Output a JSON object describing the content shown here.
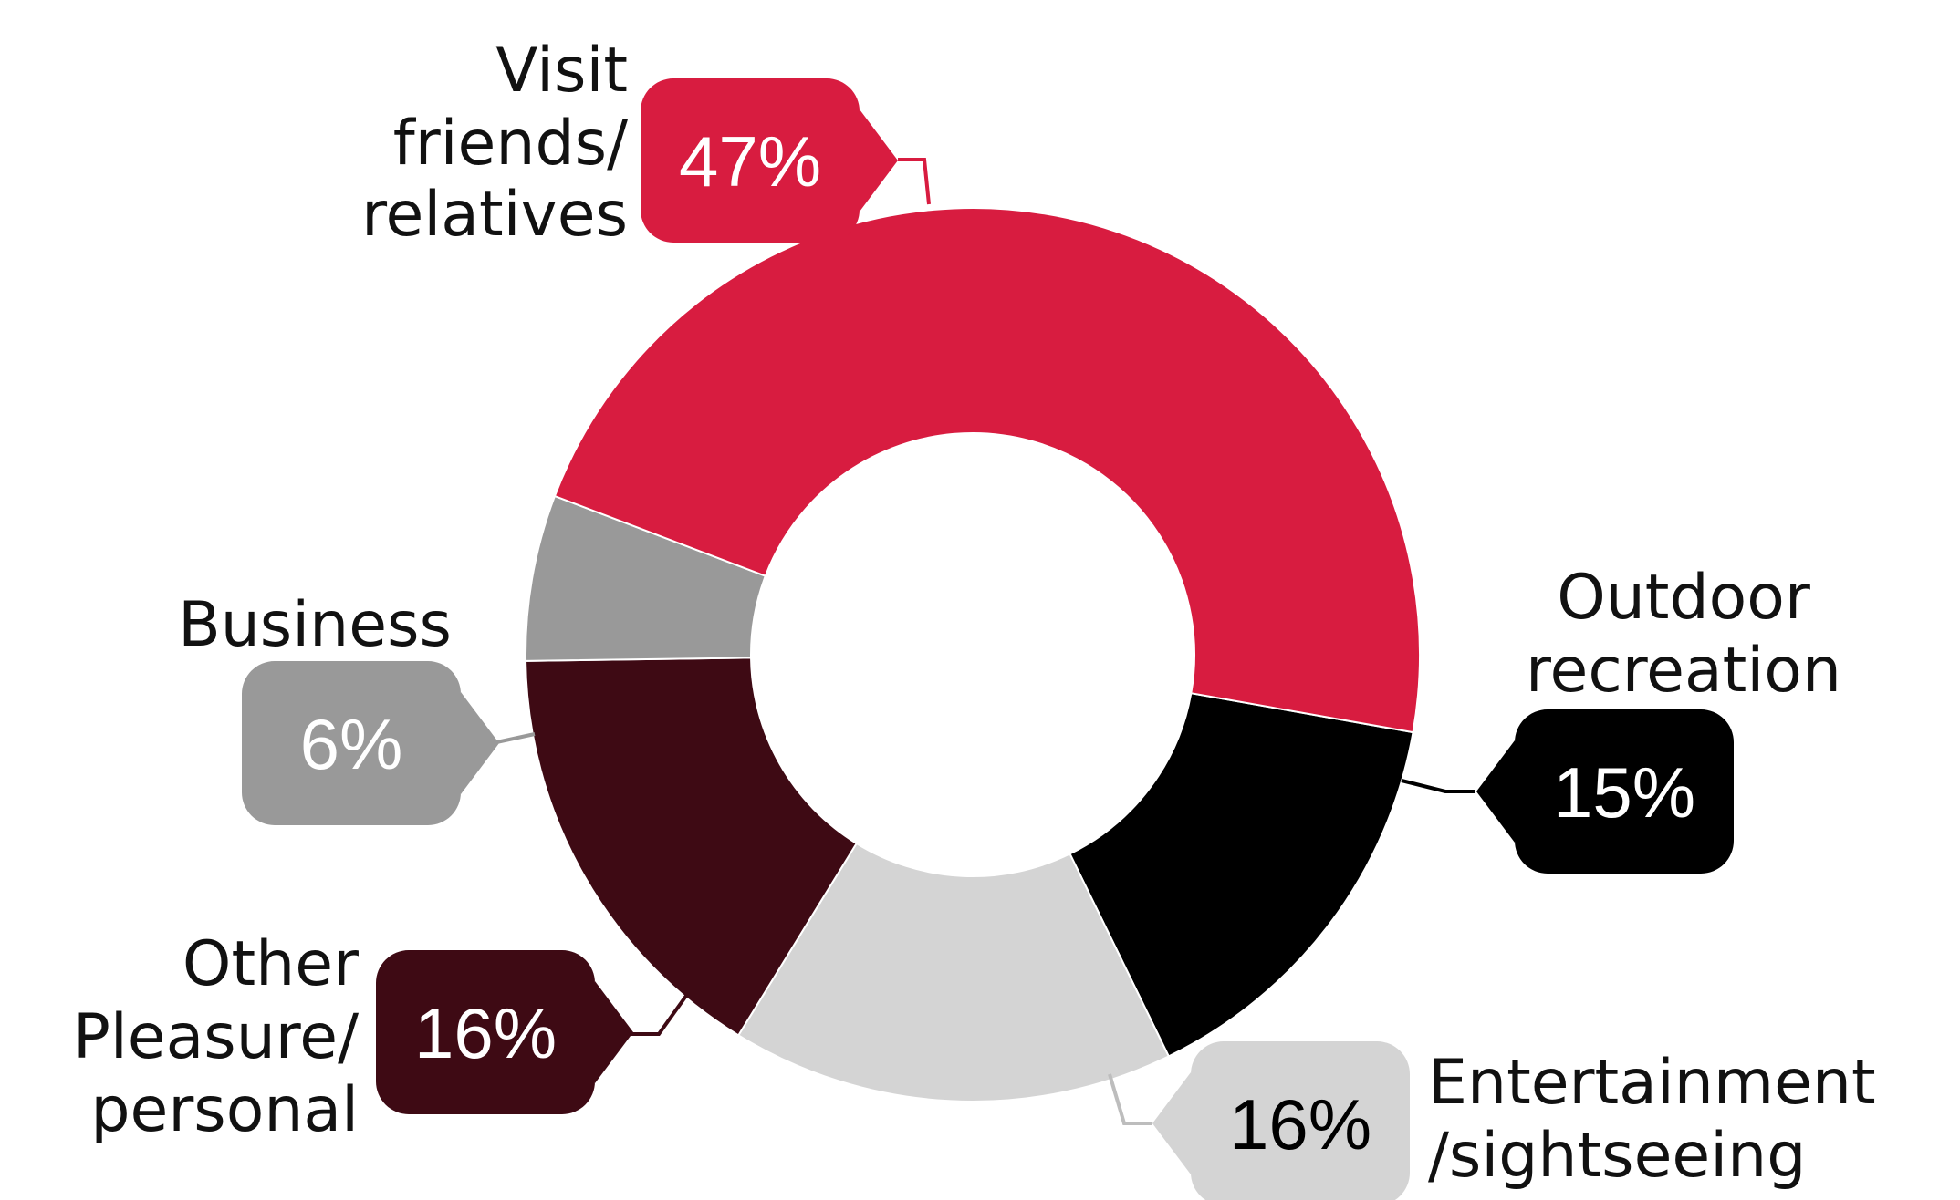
{
  "chart_data": {
    "type": "pie",
    "donut": true,
    "unit": "%",
    "slices": [
      {
        "key": "outdoor",
        "label_lines": [
          "Outdoor",
          "recreation"
        ],
        "value": 15,
        "display": "15%",
        "color": "#000000",
        "text_color": "#ffffff",
        "line_color": "#000000"
      },
      {
        "key": "entertainment",
        "label_lines": [
          "Entertainment",
          "/sightseeing"
        ],
        "value": 16,
        "display": "16%",
        "color": "#d4d4d4",
        "text_color": "#000000",
        "line_color": "#bdbdbd"
      },
      {
        "key": "other",
        "label_lines": [
          "Other",
          "Pleasure/",
          "personal"
        ],
        "value": 16,
        "display": "16%",
        "color": "#3e0a14",
        "text_color": "#ffffff",
        "line_color": "#3e0a14"
      },
      {
        "key": "business",
        "label_lines": [
          "Business"
        ],
        "value": 6,
        "display": "6%",
        "color": "#999999",
        "text_color": "#ffffff",
        "line_color": "#999999"
      },
      {
        "key": "visit",
        "label_lines": [
          "Visit",
          "friends/",
          "relatives"
        ],
        "value": 47,
        "display": "47%",
        "color": "#d81c40",
        "text_color": "#ffffff",
        "line_color": "#d81c40"
      }
    ]
  }
}
